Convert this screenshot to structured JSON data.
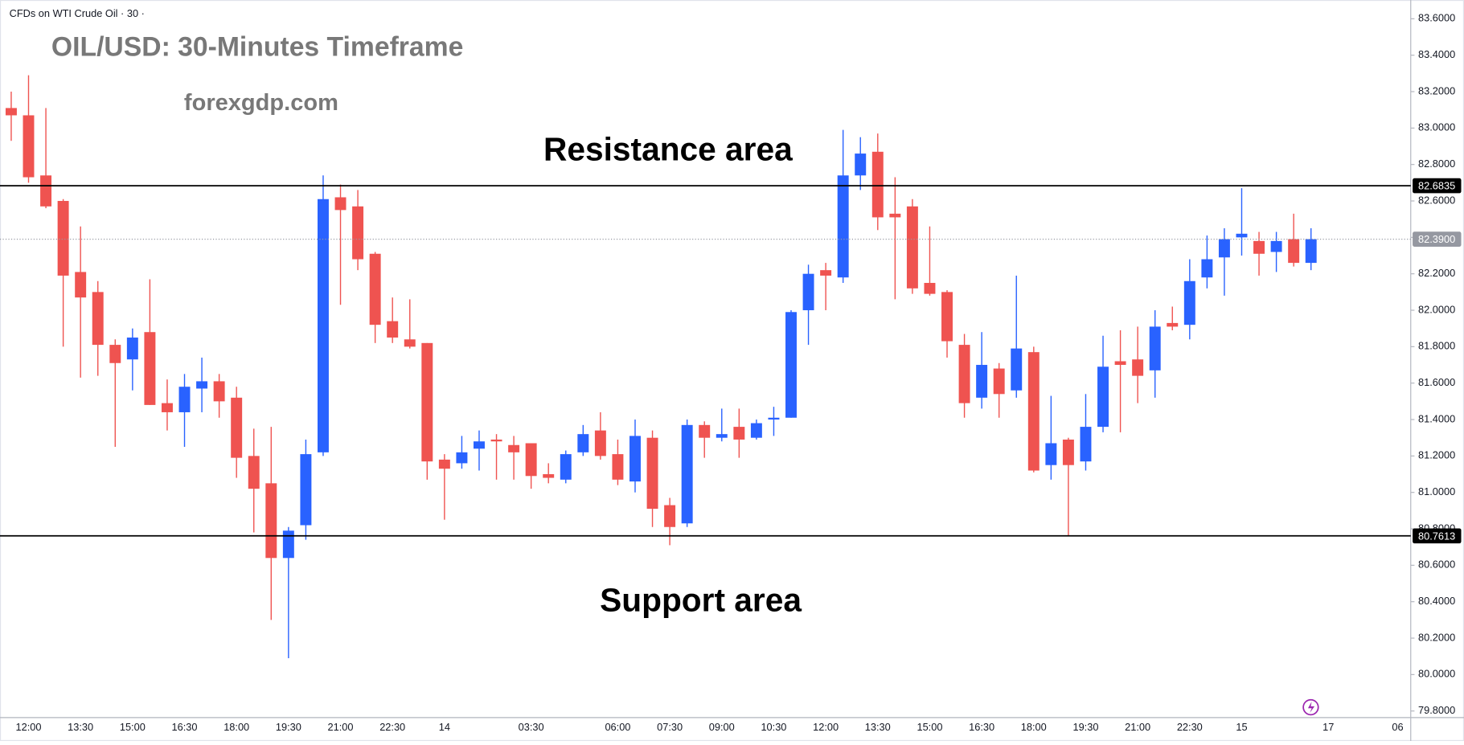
{
  "chart_data": {
    "type": "candlestick",
    "symbol": "CFDs on WTI Crude Oil · 30 ·",
    "title": "OIL/USD: 30-Minutes Timeframe",
    "watermark": "forexgdp.com",
    "annotations": [
      "Resistance area",
      "Support area"
    ],
    "up_color": "#2962ff",
    "down_color": "#ef5350",
    "grid": false,
    "ylim": [
      79.764,
      83.703
    ],
    "yticks": [
      {
        "value": 79.8,
        "label": "79.8000"
      },
      {
        "value": 80,
        "label": "80.0000"
      },
      {
        "value": 80.2,
        "label": "80.2000"
      },
      {
        "value": 80.4,
        "label": "80.4000"
      },
      {
        "value": 80.6,
        "label": "80.6000"
      },
      {
        "value": 80.8,
        "label": "80.8000"
      },
      {
        "value": 81,
        "label": "81.0000"
      },
      {
        "value": 81.2,
        "label": "81.2000"
      },
      {
        "value": 81.4,
        "label": "81.4000"
      },
      {
        "value": 81.6,
        "label": "81.6000"
      },
      {
        "value": 81.8,
        "label": "81.8000"
      },
      {
        "value": 82,
        "label": "82.0000"
      },
      {
        "value": 82.2,
        "label": "82.2000"
      },
      {
        "value": 82.4,
        "label": "82.4000"
      },
      {
        "value": 82.6,
        "label": "82.6000"
      },
      {
        "value": 82.8,
        "label": "82.8000"
      },
      {
        "value": 83,
        "label": "83.0000"
      },
      {
        "value": 83.2,
        "label": "83.2000"
      },
      {
        "value": 83.4,
        "label": "83.4000"
      },
      {
        "value": 83.6,
        "label": "83.6000"
      }
    ],
    "hlines": [
      {
        "value": 82.6835,
        "label": "82.6835",
        "color": "#000000"
      },
      {
        "value": 80.7613,
        "label": "80.7613",
        "color": "#000000"
      }
    ],
    "last_price": {
      "value": 82.39,
      "label": "82.3900",
      "color": "#9598a1"
    },
    "categories": [
      null,
      "12:00",
      null,
      null,
      "13:30",
      null,
      null,
      "15:00",
      null,
      null,
      "16:30",
      null,
      null,
      "18:00",
      null,
      null,
      "19:30",
      null,
      null,
      "21:00",
      null,
      null,
      "22:30",
      null,
      null,
      "14",
      null,
      null,
      null,
      null,
      "03:30",
      null,
      null,
      null,
      null,
      "06:00",
      null,
      null,
      "07:30",
      null,
      null,
      "09:00",
      null,
      null,
      "10:30",
      null,
      null,
      "12:00",
      null,
      null,
      "13:30",
      null,
      null,
      "15:00",
      null,
      null,
      "16:30",
      null,
      null,
      "18:00",
      null,
      null,
      "19:30",
      null,
      null,
      "21:00",
      null,
      null,
      "22:30",
      null,
      null,
      "15",
      null,
      null,
      null,
      null,
      "17",
      null,
      null,
      null,
      "06",
      null
    ],
    "open": [
      83.11,
      83.07,
      82.74,
      82.6,
      82.21,
      82.1,
      81.81,
      81.73,
      81.88,
      81.49,
      81.44,
      81.57,
      81.61,
      81.52,
      81.2,
      81.05,
      80.64,
      80.82,
      81.22,
      82.62,
      82.57,
      82.31,
      81.94,
      81.84,
      81.82,
      81.18,
      81.16,
      81.24,
      81.29,
      81.26,
      81.27,
      81.1,
      81.07,
      81.22,
      81.34,
      81.21,
      81.06,
      81.3,
      80.93,
      80.83,
      81.37,
      81.3,
      81.36,
      81.3,
      81.4,
      81.41,
      82.0,
      82.22,
      82.18,
      82.74,
      82.87,
      82.53,
      82.57,
      82.15,
      82.1,
      81.81,
      81.52,
      81.68,
      81.56,
      81.77,
      81.15,
      81.29,
      81.17,
      81.36,
      81.72,
      81.73,
      81.67,
      81.93,
      81.92,
      82.18,
      82.29,
      82.4,
      82.38,
      82.32,
      82.39,
      82.26,
      null,
      null,
      null,
      null,
      null,
      null
    ],
    "high": [
      83.2,
      83.29,
      83.11,
      82.61,
      82.46,
      82.16,
      81.84,
      81.9,
      82.17,
      81.62,
      81.65,
      81.74,
      81.65,
      81.58,
      81.35,
      81.36,
      80.81,
      81.29,
      82.74,
      82.69,
      82.66,
      82.32,
      82.07,
      82.06,
      81.82,
      81.21,
      81.31,
      81.34,
      81.32,
      81.31,
      81.27,
      81.16,
      81.23,
      81.37,
      81.44,
      81.29,
      81.4,
      81.34,
      80.97,
      81.4,
      81.39,
      81.46,
      81.46,
      81.4,
      81.47,
      82.0,
      82.25,
      82.26,
      82.99,
      82.95,
      82.97,
      82.73,
      82.61,
      82.46,
      82.11,
      81.87,
      81.88,
      81.71,
      82.19,
      81.8,
      81.53,
      81.3,
      81.54,
      81.86,
      81.89,
      81.91,
      82.0,
      82.02,
      82.28,
      82.41,
      82.45,
      82.67,
      82.43,
      82.43,
      82.53,
      82.45,
      null,
      null,
      null,
      null,
      null,
      null
    ],
    "low": [
      82.93,
      82.7,
      82.56,
      81.8,
      81.63,
      81.64,
      81.25,
      81.56,
      81.48,
      81.34,
      81.25,
      81.44,
      81.41,
      81.08,
      80.78,
      80.3,
      80.09,
      80.74,
      81.2,
      82.03,
      82.22,
      81.82,
      81.82,
      81.79,
      81.07,
      80.85,
      81.13,
      81.12,
      81.07,
      81.07,
      81.02,
      81.05,
      81.05,
      81.2,
      81.18,
      81.04,
      81.0,
      80.81,
      80.71,
      80.81,
      81.19,
      81.28,
      81.19,
      81.29,
      81.31,
      81.41,
      81.81,
      82.0,
      82.15,
      82.66,
      82.44,
      82.06,
      82.09,
      82.08,
      81.74,
      81.41,
      81.46,
      81.41,
      81.52,
      81.11,
      81.07,
      80.76,
      81.12,
      81.33,
      81.33,
      81.49,
      81.52,
      81.89,
      81.84,
      82.12,
      82.08,
      82.3,
      82.19,
      82.21,
      82.24,
      82.22,
      null,
      null,
      null,
      null,
      null,
      null
    ],
    "close": [
      83.07,
      82.73,
      82.57,
      82.19,
      82.07,
      81.81,
      81.71,
      81.85,
      81.48,
      81.44,
      81.58,
      81.61,
      81.5,
      81.19,
      81.02,
      80.64,
      80.79,
      81.21,
      82.61,
      82.55,
      82.28,
      81.92,
      81.85,
      81.8,
      81.17,
      81.13,
      81.22,
      81.28,
      81.28,
      81.22,
      81.09,
      81.08,
      81.21,
      81.32,
      81.2,
      81.07,
      81.31,
      80.91,
      80.81,
      81.37,
      81.3,
      81.32,
      81.29,
      81.38,
      81.41,
      81.99,
      82.2,
      82.19,
      82.74,
      82.86,
      82.51,
      82.51,
      82.12,
      82.09,
      81.83,
      81.49,
      81.7,
      81.54,
      81.79,
      81.12,
      81.27,
      81.15,
      81.36,
      81.69,
      81.7,
      81.64,
      81.91,
      81.91,
      82.16,
      82.28,
      82.39,
      82.42,
      82.31,
      82.38,
      82.26,
      82.39,
      null,
      null,
      null,
      null,
      null,
      null
    ]
  }
}
